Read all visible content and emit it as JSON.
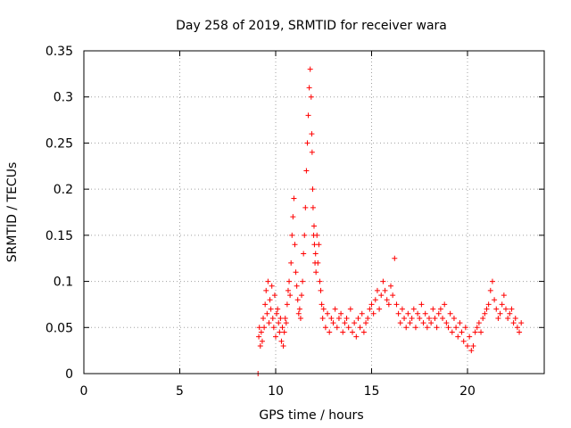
{
  "chart_data": {
    "type": "scatter",
    "title": "Day 258 of 2019, SRMTID for receiver wara",
    "xlabel": "GPS time / hours",
    "ylabel": "SRMTID / TECUs",
    "xlim": [
      0,
      24
    ],
    "ylim": [
      0,
      0.35
    ],
    "xticks": [
      0,
      5,
      10,
      15,
      20
    ],
    "yticks": [
      0,
      0.05,
      0.1,
      0.15,
      0.2,
      0.25,
      0.3,
      0.35
    ],
    "xtick_labels": [
      "0",
      "5",
      "10",
      "15",
      "20"
    ],
    "ytick_labels": [
      "0",
      "0.05",
      "0.1",
      "0.15",
      "0.2",
      "0.25",
      "0.3",
      "0.35"
    ],
    "grid": true,
    "marker": "+",
    "series": [
      {
        "name": "SRMTID",
        "color": "#ff0000",
        "x": [
          9.08,
          9.12,
          9.15,
          9.2,
          9.25,
          9.3,
          9.35,
          9.4,
          9.45,
          9.5,
          9.55,
          9.6,
          9.65,
          9.7,
          9.75,
          9.8,
          9.85,
          9.9,
          9.95,
          10.0,
          10.05,
          10.1,
          10.15,
          10.2,
          10.25,
          10.3,
          10.35,
          10.4,
          10.45,
          10.5,
          10.55,
          10.6,
          10.65,
          10.7,
          10.75,
          10.8,
          10.85,
          10.9,
          10.95,
          11.0,
          11.05,
          11.1,
          11.15,
          11.2,
          11.25,
          11.3,
          11.35,
          11.4,
          11.45,
          11.5,
          11.55,
          11.6,
          11.65,
          11.7,
          11.75,
          11.8,
          11.85,
          11.88,
          11.9,
          11.93,
          11.95,
          11.98,
          12.0,
          12.02,
          12.05,
          12.08,
          12.1,
          12.15,
          12.2,
          12.25,
          12.3,
          12.35,
          12.4,
          12.45,
          12.5,
          12.6,
          12.7,
          12.8,
          12.9,
          13.0,
          13.1,
          13.2,
          13.3,
          13.4,
          13.5,
          13.6,
          13.7,
          13.8,
          13.9,
          14.0,
          14.1,
          14.2,
          14.3,
          14.4,
          14.5,
          14.6,
          14.7,
          14.8,
          14.9,
          15.0,
          15.1,
          15.2,
          15.3,
          15.4,
          15.5,
          15.6,
          15.7,
          15.8,
          15.9,
          16.0,
          16.1,
          16.2,
          16.3,
          16.4,
          16.5,
          16.6,
          16.7,
          16.8,
          16.9,
          17.0,
          17.1,
          17.2,
          17.3,
          17.4,
          17.5,
          17.6,
          17.7,
          17.8,
          17.9,
          18.0,
          18.1,
          18.2,
          18.3,
          18.4,
          18.5,
          18.6,
          18.7,
          18.8,
          18.9,
          19.0,
          19.1,
          19.2,
          19.3,
          19.4,
          19.5,
          19.6,
          19.7,
          19.8,
          19.9,
          20.0,
          20.1,
          20.2,
          20.3,
          20.4,
          20.5,
          20.6,
          20.7,
          20.8,
          20.9,
          21.0,
          21.1,
          21.2,
          21.3,
          21.4,
          21.5,
          21.6,
          21.7,
          21.8,
          21.9,
          22.0,
          22.1,
          22.2,
          22.3,
          22.4,
          22.5,
          22.6,
          22.7,
          22.8
        ],
        "y": [
          0.0,
          0.04,
          0.05,
          0.03,
          0.045,
          0.035,
          0.06,
          0.05,
          0.075,
          0.09,
          0.065,
          0.1,
          0.055,
          0.08,
          0.07,
          0.095,
          0.06,
          0.05,
          0.085,
          0.04,
          0.065,
          0.07,
          0.055,
          0.045,
          0.06,
          0.035,
          0.05,
          0.03,
          0.045,
          0.06,
          0.055,
          0.075,
          0.09,
          0.1,
          0.085,
          0.12,
          0.15,
          0.17,
          0.19,
          0.14,
          0.11,
          0.095,
          0.08,
          0.065,
          0.07,
          0.06,
          0.085,
          0.1,
          0.13,
          0.15,
          0.18,
          0.22,
          0.25,
          0.28,
          0.31,
          0.33,
          0.3,
          0.26,
          0.24,
          0.2,
          0.18,
          0.15,
          0.16,
          0.14,
          0.12,
          0.13,
          0.11,
          0.15,
          0.12,
          0.14,
          0.1,
          0.09,
          0.075,
          0.06,
          0.07,
          0.05,
          0.065,
          0.045,
          0.06,
          0.055,
          0.07,
          0.05,
          0.06,
          0.065,
          0.045,
          0.055,
          0.06,
          0.05,
          0.07,
          0.045,
          0.055,
          0.04,
          0.06,
          0.05,
          0.065,
          0.045,
          0.055,
          0.06,
          0.07,
          0.075,
          0.065,
          0.08,
          0.09,
          0.07,
          0.085,
          0.1,
          0.09,
          0.08,
          0.075,
          0.095,
          0.085,
          0.125,
          0.075,
          0.065,
          0.055,
          0.07,
          0.06,
          0.05,
          0.065,
          0.055,
          0.06,
          0.07,
          0.05,
          0.065,
          0.06,
          0.075,
          0.055,
          0.065,
          0.05,
          0.06,
          0.055,
          0.07,
          0.06,
          0.05,
          0.065,
          0.07,
          0.06,
          0.075,
          0.055,
          0.05,
          0.065,
          0.045,
          0.06,
          0.05,
          0.04,
          0.055,
          0.045,
          0.035,
          0.05,
          0.03,
          0.04,
          0.025,
          0.03,
          0.045,
          0.05,
          0.055,
          0.045,
          0.06,
          0.065,
          0.07,
          0.075,
          0.09,
          0.1,
          0.08,
          0.07,
          0.06,
          0.065,
          0.075,
          0.085,
          0.07,
          0.06,
          0.065,
          0.07,
          0.055,
          0.06,
          0.05,
          0.045,
          0.055
        ]
      }
    ]
  }
}
